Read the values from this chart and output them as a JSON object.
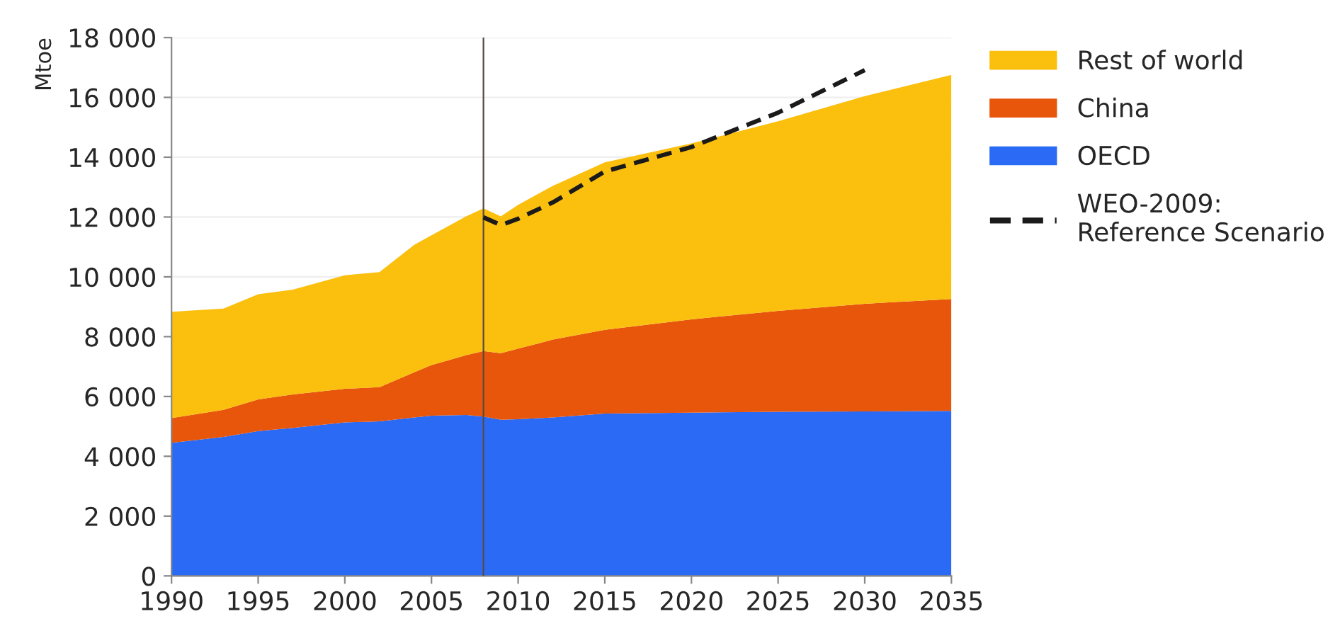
{
  "chart_data": {
    "type": "area",
    "stacked": true,
    "ylabel": "Mtoe",
    "x": [
      1990,
      1993,
      1995,
      1997,
      2000,
      2002,
      2004,
      2005,
      2007,
      2008,
      2009,
      2010,
      2012,
      2015,
      2020,
      2025,
      2030,
      2035
    ],
    "series": [
      {
        "name": "OECD",
        "color": "#2a6af5",
        "values": [
          4450,
          4650,
          4840,
          4950,
          5130,
          5170,
          5300,
          5360,
          5380,
          5330,
          5220,
          5240,
          5300,
          5430,
          5460,
          5490,
          5500,
          5520
        ]
      },
      {
        "name": "China",
        "color": "#e8560c",
        "values": [
          830,
          900,
          1060,
          1120,
          1130,
          1140,
          1510,
          1690,
          2000,
          2190,
          2230,
          2360,
          2600,
          2800,
          3120,
          3370,
          3600,
          3740
        ]
      },
      {
        "name": "Rest of world",
        "color": "#fbbf0e",
        "values": [
          3550,
          3390,
          3520,
          3500,
          3790,
          3850,
          4260,
          4340,
          4640,
          4770,
          4570,
          4810,
          5140,
          5600,
          5880,
          6340,
          6940,
          7490
        ]
      },
      {
        "name": "WEO-2009:\nReference Scenario",
        "type": "line",
        "color": "#1a1a1a",
        "line_style": "dashed",
        "x": [
          2008,
          2009,
          2010,
          2012,
          2015,
          2020,
          2025,
          2030
        ],
        "values": [
          11990,
          11730,
          11940,
          12490,
          13520,
          14340,
          15490,
          16910
        ]
      }
    ],
    "ref_lines": [
      {
        "axis": "x",
        "value": 2008,
        "color": "#5a4a40"
      }
    ],
    "xlim": [
      1990,
      2035
    ],
    "xticks": [
      1990,
      1995,
      2000,
      2005,
      2010,
      2015,
      2020,
      2025,
      2030,
      2035
    ],
    "ylim": [
      0,
      18000
    ],
    "yticks": [
      {
        "value": 0,
        "label": "0"
      },
      {
        "value": 2000,
        "label": "2 000"
      },
      {
        "value": 4000,
        "label": "4 000"
      },
      {
        "value": 6000,
        "label": "6 000"
      },
      {
        "value": 8000,
        "label": "8 000"
      },
      {
        "value": 10000,
        "label": "10 000"
      },
      {
        "value": 12000,
        "label": "12 000"
      },
      {
        "value": 14000,
        "label": "14 000"
      },
      {
        "value": 16000,
        "label": "16 000"
      },
      {
        "value": 18000,
        "label": "18 000"
      }
    ],
    "grid": "y",
    "legend": "right"
  }
}
